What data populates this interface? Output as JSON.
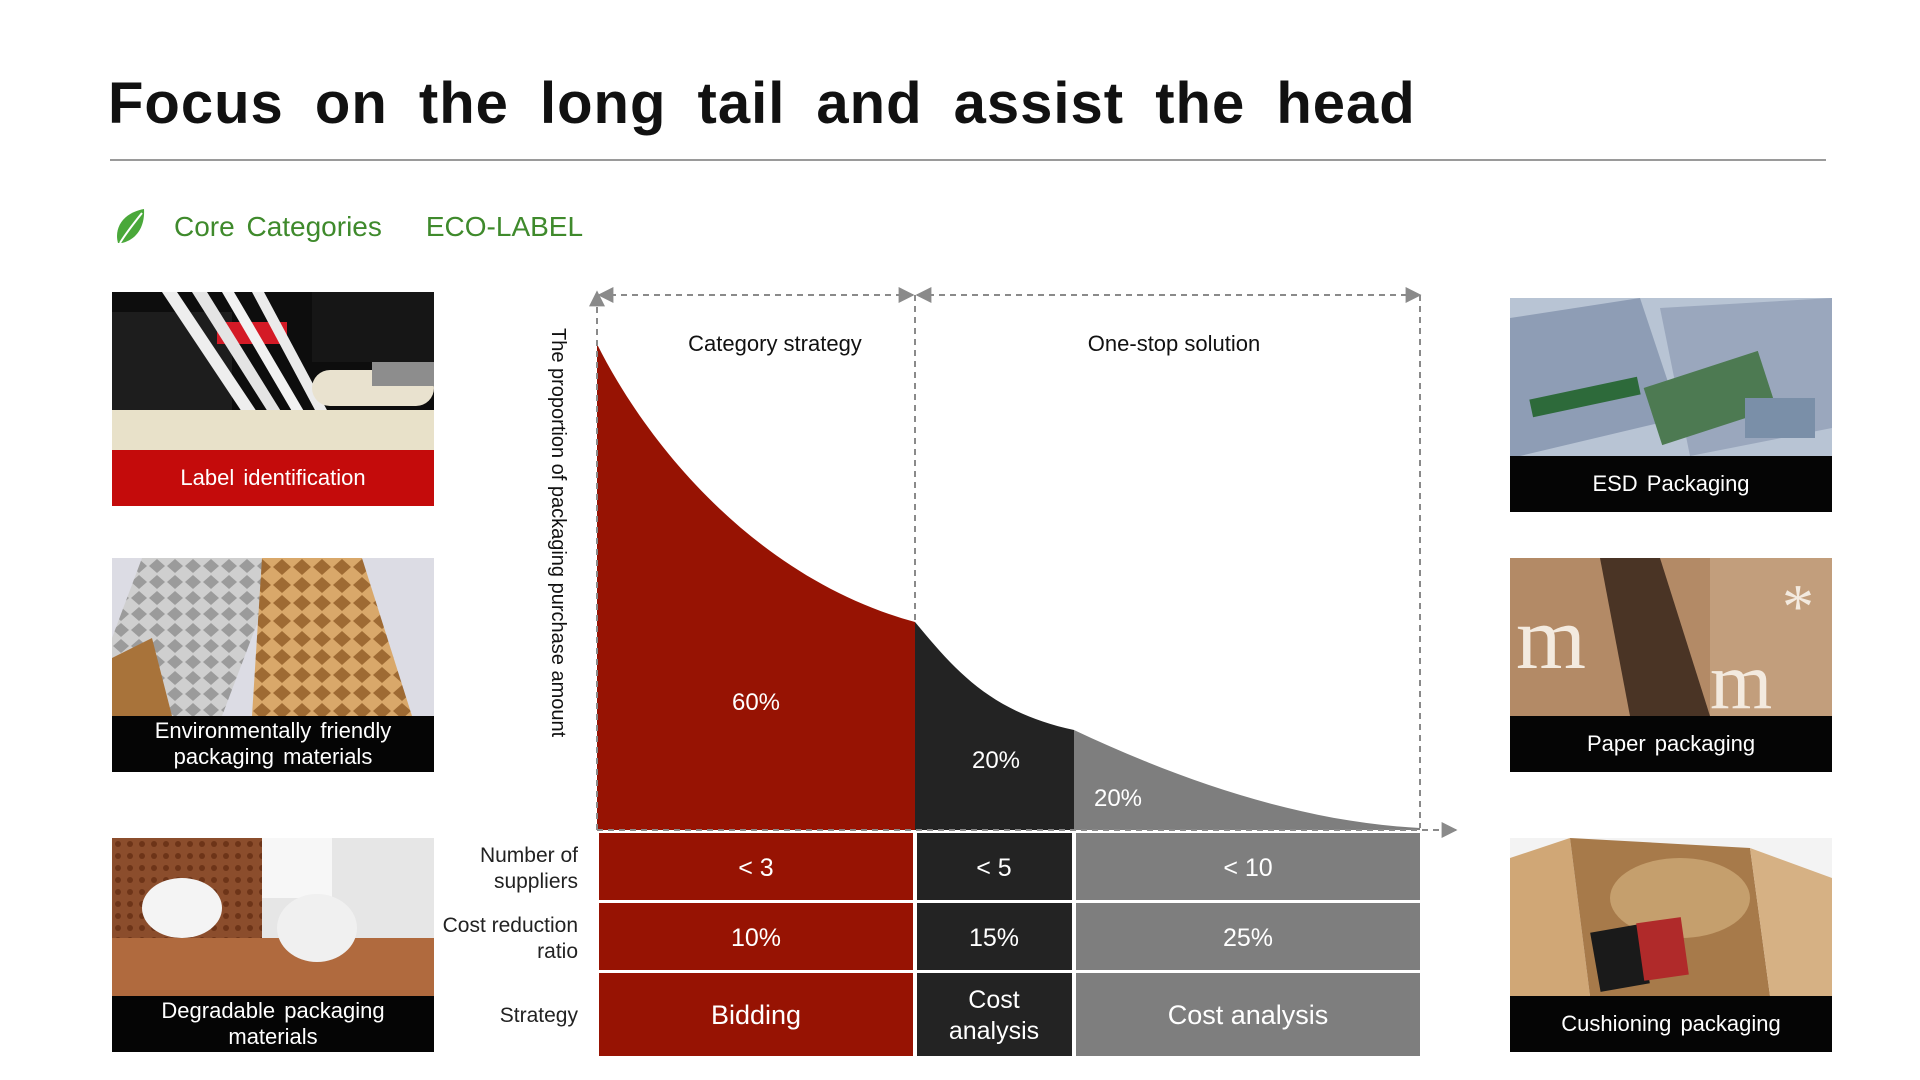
{
  "slide": {
    "title": "Focus on the long tail and assist the head",
    "section": {
      "label": "Core Categories",
      "sub_label": "ECO-LABEL",
      "icon": "leaf-icon",
      "color": "#3f8a2c"
    }
  },
  "left_cards": [
    {
      "caption": "Label identification",
      "caption_style": "red"
    },
    {
      "caption": "Environmentally friendly packaging materials",
      "caption_style": "black"
    },
    {
      "caption": "Degradable packaging materials",
      "caption_style": "black"
    }
  ],
  "right_cards": [
    {
      "caption": "ESD Packaging",
      "caption_style": "black"
    },
    {
      "caption": "Paper packaging",
      "caption_style": "black"
    },
    {
      "caption": "Cushioning packaging",
      "caption_style": "black"
    }
  ],
  "chart_data": {
    "type": "area",
    "ylabel": "The proportion of packaging purchase amount",
    "region_labels": [
      "Category strategy",
      "One-stop solution"
    ],
    "segments": [
      {
        "share_label": "60%",
        "share": 60,
        "color": "#971303"
      },
      {
        "share_label": "20%",
        "share": 20,
        "color": "#232323"
      },
      {
        "share_label": "20%",
        "share": 20,
        "color": "#7e7e7e"
      }
    ],
    "table": {
      "rows": [
        {
          "label": "Number of suppliers",
          "cells": [
            "< 3",
            "< 5",
            "< 10"
          ]
        },
        {
          "label": "Cost reduction ratio",
          "cells": [
            "10%",
            "15%",
            "25%"
          ]
        },
        {
          "label": "Strategy",
          "cells": [
            "Bidding",
            "Cost analysis",
            "Cost analysis"
          ]
        }
      ]
    }
  }
}
